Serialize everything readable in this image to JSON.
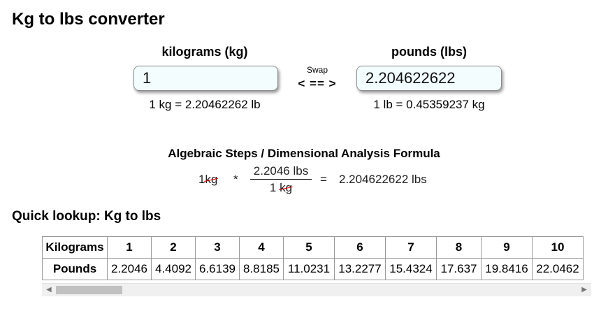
{
  "page": {
    "title": "Kg to lbs converter"
  },
  "converter": {
    "left_label": "kilograms (kg)",
    "left_value": "1",
    "left_note": "1 kg = 2.20462262 lb",
    "right_label": "pounds (lbs)",
    "right_value": "2.204622622",
    "right_note": "1 lb = 0.45359237 kg",
    "swap_label": "Swap",
    "swap_arrow": "< == >"
  },
  "algebra": {
    "title": "Algebraic Steps / Dimensional Analysis Formula",
    "lhs_number": "1",
    "lhs_unit": "kg",
    "times": "*",
    "numerator": "2.2046 lbs",
    "denominator_number": "1",
    "denominator_unit": "kg",
    "equals": "=",
    "result": "2.204622622 lbs"
  },
  "lookup": {
    "title": "Quick lookup: Kg to lbs",
    "row_headers": [
      "Kilograms",
      "Pounds"
    ],
    "kilograms": [
      "1",
      "2",
      "3",
      "4",
      "5",
      "6",
      "7",
      "8",
      "9",
      "10"
    ],
    "pounds": [
      "2.2046",
      "4.4092",
      "6.6139",
      "8.8185",
      "11.0231",
      "13.2277",
      "15.4324",
      "17.637",
      "19.8416",
      "22.0462"
    ]
  },
  "icons": {
    "scroll_left": "triangle-left-icon",
    "scroll_right": "triangle-right-icon"
  }
}
